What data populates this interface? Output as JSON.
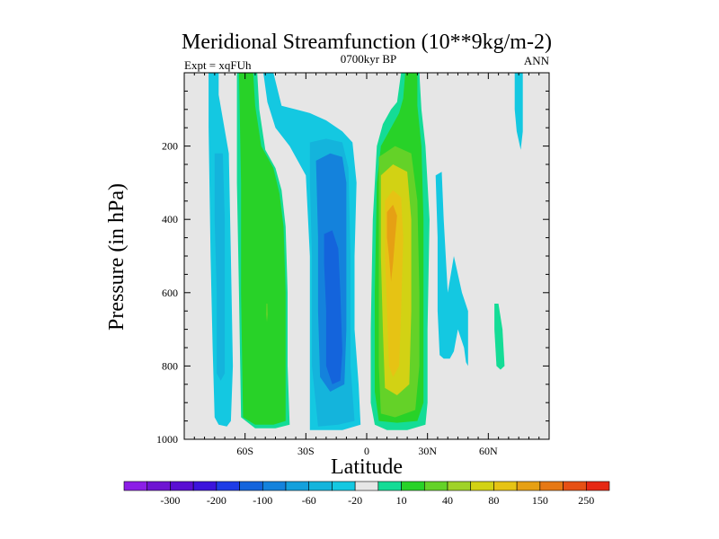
{
  "chart_data": {
    "type": "contour",
    "title": "Meridional Streamfunction (10**9kg/m-2)",
    "subtitle_left": "Expt = xqFUh",
    "subtitle_center": "0700kyr BP",
    "subtitle_right": "ANN",
    "xlabel": "Latitude",
    "ylabel": "Pressure (in hPa)",
    "xlim": [
      -90,
      90
    ],
    "ylim": [
      0,
      1000
    ],
    "x_ticks": [
      {
        "value": -60,
        "label": "60S"
      },
      {
        "value": -30,
        "label": "30S"
      },
      {
        "value": 0,
        "label": "0"
      },
      {
        "value": 30,
        "label": "30N"
      },
      {
        "value": 60,
        "label": "60N"
      }
    ],
    "y_ticks": [
      {
        "value": 200,
        "label": "200"
      },
      {
        "value": 400,
        "label": "400"
      },
      {
        "value": 600,
        "label": "600"
      },
      {
        "value": 800,
        "label": "800"
      },
      {
        "value": 1000,
        "label": "1000"
      }
    ],
    "colorbar": {
      "colors": [
        "#8c1ee6",
        "#6e14d2",
        "#5a0fd2",
        "#3c14dc",
        "#1e3ce6",
        "#1464dc",
        "#1482dc",
        "#14a0dc",
        "#14b4dc",
        "#14c8e1",
        "#e6e6e6",
        "#14dc96",
        "#28d228",
        "#64d228",
        "#a0d228",
        "#d2d214",
        "#e6c314",
        "#e6a014",
        "#e67814",
        "#e65014",
        "#e62814"
      ],
      "labels": [
        {
          "after_index": 1,
          "text": "-300"
        },
        {
          "after_index": 3,
          "text": "-200"
        },
        {
          "after_index": 5,
          "text": "-100"
        },
        {
          "after_index": 7,
          "text": "-60"
        },
        {
          "after_index": 9,
          "text": "-20"
        },
        {
          "after_index": 11,
          "text": "10"
        },
        {
          "after_index": 13,
          "text": "40"
        },
        {
          "after_index": 15,
          "text": "80"
        },
        {
          "after_index": 17,
          "text": "150"
        },
        {
          "after_index": 19,
          "text": "250"
        }
      ]
    },
    "background_color": "#e6e6e6",
    "regions": [
      {
        "name": "southern-polar-negative-cell",
        "level": -10,
        "color": "#14c8e1",
        "points": [
          [
            -78,
            0
          ],
          [
            -73,
            0
          ],
          [
            -73,
            60
          ],
          [
            -68,
            220
          ],
          [
            -67,
            500
          ],
          [
            -66,
            800
          ],
          [
            -67,
            950
          ],
          [
            -69,
            965
          ],
          [
            -73,
            960
          ],
          [
            -75,
            940
          ],
          [
            -76,
            750
          ],
          [
            -77,
            500
          ],
          [
            -78,
            150
          ]
        ]
      },
      {
        "name": "southern-polar-core",
        "level": -20,
        "color": "#14b4dc",
        "points": [
          [
            -75,
            220
          ],
          [
            -71,
            220
          ],
          [
            -70,
            400
          ],
          [
            -70,
            700
          ],
          [
            -70,
            820
          ],
          [
            -72,
            840
          ],
          [
            -74,
            820
          ],
          [
            -74,
            600
          ],
          [
            -75,
            400
          ]
        ]
      },
      {
        "name": "southern-ferrel-positive-cell",
        "level": 10,
        "color": "#14dc96",
        "points": [
          [
            -64,
            0
          ],
          [
            -54,
            0
          ],
          [
            -53,
            100
          ],
          [
            -50,
            210
          ],
          [
            -45,
            260
          ],
          [
            -42,
            320
          ],
          [
            -40,
            420
          ],
          [
            -39,
            600
          ],
          [
            -39,
            800
          ],
          [
            -38,
            960
          ],
          [
            -45,
            970
          ],
          [
            -55,
            970
          ],
          [
            -62,
            940
          ],
          [
            -63,
            600
          ],
          [
            -64,
            300
          ]
        ]
      },
      {
        "name": "southern-ferrel-core",
        "level": 20,
        "color": "#28d228",
        "points": [
          [
            -63,
            0
          ],
          [
            -56,
            0
          ],
          [
            -55,
            90
          ],
          [
            -52,
            200
          ],
          [
            -46,
            260
          ],
          [
            -43,
            330
          ],
          [
            -41,
            420
          ],
          [
            -40,
            600
          ],
          [
            -40,
            800
          ],
          [
            -40,
            950
          ],
          [
            -46,
            960
          ],
          [
            -55,
            960
          ],
          [
            -61,
            940
          ],
          [
            -62,
            600
          ],
          [
            -62,
            300
          ]
        ]
      },
      {
        "name": "southern-hadley-outer",
        "level": -10,
        "color": "#14c8e1",
        "points": [
          [
            -51,
            0
          ],
          [
            -46,
            0
          ],
          [
            -42,
            90
          ],
          [
            -35,
            100
          ],
          [
            -28,
            110
          ],
          [
            -20,
            130
          ],
          [
            -12,
            160
          ],
          [
            -7,
            190
          ],
          [
            -5,
            300
          ],
          [
            -6,
            500
          ],
          [
            -6,
            700
          ],
          [
            -4,
            850
          ],
          [
            -3,
            960
          ],
          [
            -12,
            975
          ],
          [
            -22,
            975
          ],
          [
            -28,
            975
          ],
          [
            -28,
            800
          ],
          [
            -28,
            500
          ],
          [
            -30,
            280
          ],
          [
            -38,
            200
          ],
          [
            -45,
            150
          ],
          [
            -49,
            80
          ]
        ]
      },
      {
        "name": "southern-hadley-mid",
        "level": -20,
        "color": "#14b4dc",
        "points": [
          [
            -28,
            190
          ],
          [
            -20,
            180
          ],
          [
            -12,
            190
          ],
          [
            -9,
            260
          ],
          [
            -8,
            500
          ],
          [
            -8,
            800
          ],
          [
            -6,
            950
          ],
          [
            -14,
            960
          ],
          [
            -24,
            965
          ],
          [
            -27,
            800
          ],
          [
            -27,
            500
          ],
          [
            -28,
            300
          ]
        ]
      },
      {
        "name": "southern-hadley-inner",
        "level": -40,
        "color": "#1482dc",
        "points": [
          [
            -25,
            240
          ],
          [
            -18,
            220
          ],
          [
            -12,
            230
          ],
          [
            -10,
            300
          ],
          [
            -10,
            500
          ],
          [
            -10,
            700
          ],
          [
            -11,
            850
          ],
          [
            -18,
            870
          ],
          [
            -23,
            830
          ],
          [
            -24,
            650
          ],
          [
            -24,
            450
          ]
        ]
      },
      {
        "name": "southern-hadley-core",
        "level": -60,
        "color": "#1464dc",
        "points": [
          [
            -21,
            440
          ],
          [
            -17,
            430
          ],
          [
            -14,
            480
          ],
          [
            -13,
            600
          ],
          [
            -12,
            760
          ],
          [
            -13,
            840
          ],
          [
            -17,
            850
          ],
          [
            -20,
            800
          ],
          [
            -20,
            650
          ],
          [
            -21,
            520
          ]
        ]
      },
      {
        "name": "northern-polar-positive-strip",
        "level": 10,
        "color": "#14c8e1",
        "points": [
          [
            73,
            0
          ],
          [
            77,
            0
          ],
          [
            77,
            160
          ],
          [
            76,
            210
          ],
          [
            74,
            160
          ],
          [
            73,
            100
          ]
        ]
      },
      {
        "name": "northern-hadley-outer",
        "level": 10,
        "color": "#14dc96",
        "points": [
          [
            17,
            0
          ],
          [
            26,
            0
          ],
          [
            27,
            100
          ],
          [
            29,
            200
          ],
          [
            31,
            400
          ],
          [
            30,
            700
          ],
          [
            30,
            900
          ],
          [
            29,
            960
          ],
          [
            20,
            975
          ],
          [
            10,
            975
          ],
          [
            4,
            960
          ],
          [
            2,
            900
          ],
          [
            2,
            700
          ],
          [
            3,
            400
          ],
          [
            5,
            200
          ],
          [
            8,
            140
          ],
          [
            12,
            100
          ],
          [
            15,
            80
          ]
        ]
      },
      {
        "name": "northern-hadley-mid",
        "level": 20,
        "color": "#28d228",
        "points": [
          [
            19,
            0
          ],
          [
            25,
            0
          ],
          [
            25,
            90
          ],
          [
            27,
            200
          ],
          [
            28,
            400
          ],
          [
            28,
            700
          ],
          [
            28,
            900
          ],
          [
            25,
            950
          ],
          [
            15,
            955
          ],
          [
            6,
            950
          ],
          [
            4,
            870
          ],
          [
            4,
            600
          ],
          [
            5,
            300
          ],
          [
            7,
            200
          ],
          [
            12,
            150
          ],
          [
            16,
            110
          ],
          [
            18,
            70
          ]
        ]
      },
      {
        "name": "northern-hadley-inner",
        "level": 40,
        "color": "#64d228",
        "points": [
          [
            6,
            230
          ],
          [
            14,
            200
          ],
          [
            22,
            220
          ],
          [
            25,
            350
          ],
          [
            26,
            600
          ],
          [
            26,
            800
          ],
          [
            24,
            920
          ],
          [
            14,
            940
          ],
          [
            7,
            930
          ],
          [
            6,
            800
          ],
          [
            6,
            600
          ],
          [
            6,
            400
          ]
        ]
      },
      {
        "name": "northern-hadley-core",
        "level": 80,
        "color": "#d2d214",
        "points": [
          [
            7,
            280
          ],
          [
            13,
            250
          ],
          [
            20,
            270
          ],
          [
            22,
            400
          ],
          [
            22,
            650
          ],
          [
            21,
            850
          ],
          [
            15,
            880
          ],
          [
            9,
            860
          ],
          [
            8,
            700
          ],
          [
            7,
            500
          ]
        ]
      },
      {
        "name": "northern-hadley-peak",
        "level": 150,
        "color": "#e6c314",
        "points": [
          [
            9,
            350
          ],
          [
            13,
            320
          ],
          [
            17,
            340
          ],
          [
            18,
            450
          ],
          [
            17,
            650
          ],
          [
            16,
            800
          ],
          [
            13,
            830
          ],
          [
            11,
            800
          ],
          [
            10,
            650
          ],
          [
            9,
            500
          ]
        ]
      },
      {
        "name": "northern-hadley-max",
        "level": 250,
        "color": "#e6a014",
        "points": [
          [
            10,
            380
          ],
          [
            13,
            360
          ],
          [
            15,
            390
          ],
          [
            14,
            450
          ],
          [
            13,
            520
          ],
          [
            12,
            570
          ],
          [
            11,
            500
          ],
          [
            10,
            450
          ]
        ]
      },
      {
        "name": "northern-ferrel-negative-cell",
        "level": -10,
        "color": "#14c8e1",
        "points": [
          [
            34,
            280
          ],
          [
            37,
            270
          ],
          [
            38,
            400
          ],
          [
            40,
            600
          ],
          [
            43,
            500
          ],
          [
            47,
            600
          ],
          [
            50,
            650
          ],
          [
            50,
            800
          ],
          [
            49,
            790
          ],
          [
            48,
            750
          ],
          [
            45,
            700
          ],
          [
            43,
            760
          ],
          [
            41,
            780
          ],
          [
            38,
            780
          ],
          [
            36,
            770
          ],
          [
            35,
            650
          ],
          [
            35,
            450
          ]
        ]
      },
      {
        "name": "northern-midlat-positive",
        "level": 10,
        "color": "#14dc96",
        "points": [
          [
            63,
            630
          ],
          [
            65,
            630
          ],
          [
            67,
            700
          ],
          [
            68,
            800
          ],
          [
            66,
            810
          ],
          [
            64,
            800
          ],
          [
            63,
            700
          ]
        ]
      },
      {
        "name": "southern-ferrel-small-speck",
        "level": 40,
        "color": "#64d228",
        "points": [
          [
            -49.5,
            630
          ],
          [
            -49,
            630
          ],
          [
            -48.8,
            660
          ],
          [
            -49.2,
            680
          ],
          [
            -49.6,
            660
          ]
        ]
      }
    ]
  }
}
